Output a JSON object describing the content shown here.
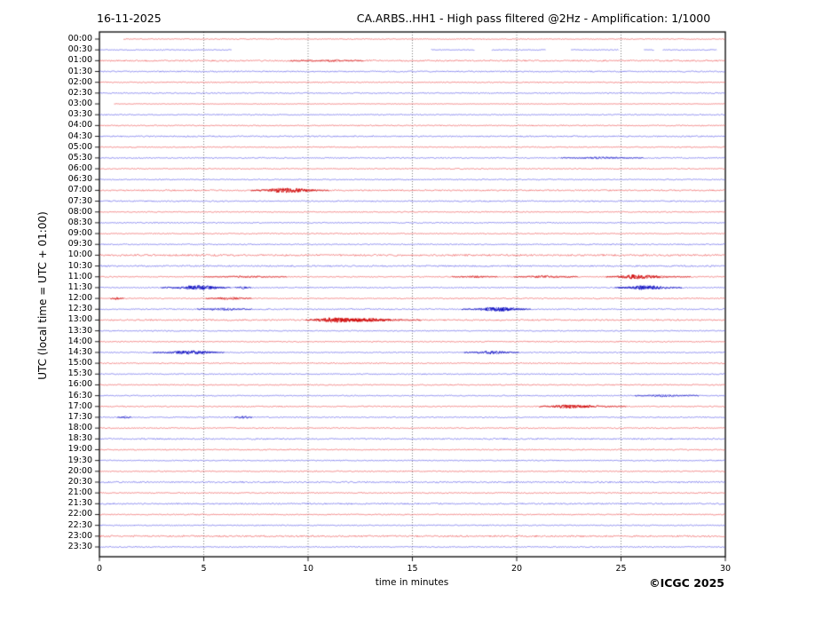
{
  "header": {
    "date_label": "16-11-2025",
    "title": "CA.ARBS..HH1 - High pass filtered @2Hz - Amplification: 1/1000"
  },
  "footer": {
    "copyright": "©ICGC 2025"
  },
  "chart_data": {
    "type": "line",
    "subtype": "helicorder-day-plot",
    "title": "CA.ARBS..HH1 - High pass filtered @2Hz - Amplification: 1/1000",
    "date": "16-11-2025",
    "xlabel": "time in minutes",
    "ylabel": "UTC (local time = UTC + 01:00)",
    "x_range": [
      0,
      30
    ],
    "x_ticks": [
      0,
      5,
      10,
      15,
      20,
      25,
      30
    ],
    "grid": "vertical-dashed-every-5-min",
    "legend_position": "none",
    "colors": {
      "trace_red": "rgb(235,60,60)",
      "trace_blue": "rgb(70,70,230)",
      "event_red": "rgb(205,0,0)",
      "event_blue": "rgb(10,10,190)",
      "grid_gray": "#555555",
      "frame_black": "#000000"
    },
    "row_note": "each row = 30 minutes; segments = [startMin,endMin] of recorded data; events = [centerMin, amplitudePx, widthMin]",
    "rows": [
      {
        "label": "00:00",
        "color": "red",
        "base": 0.5,
        "segments": [
          [
            1.15,
            30
          ]
        ],
        "events": []
      },
      {
        "label": "00:30",
        "color": "blue",
        "base": 0.5,
        "segments": [
          [
            0,
            6.35
          ],
          [
            15.9,
            18.0
          ],
          [
            18.8,
            21.4
          ],
          [
            22.6,
            24.9
          ],
          [
            26.1,
            26.6
          ],
          [
            27.0,
            29.6
          ]
        ],
        "events": []
      },
      {
        "label": "01:00",
        "color": "red",
        "base": 0.8,
        "segments": [
          [
            0,
            30
          ]
        ],
        "events": [
          [
            10.9,
            0.5,
            0.8
          ]
        ]
      },
      {
        "label": "01:30",
        "color": "blue",
        "base": 0.7,
        "segments": [
          [
            0,
            30
          ]
        ],
        "events": []
      },
      {
        "label": "02:00",
        "color": "red",
        "base": 0.6,
        "segments": [
          [
            0,
            30
          ]
        ],
        "events": []
      },
      {
        "label": "02:30",
        "color": "blue",
        "base": 0.6,
        "segments": [
          [
            0,
            30
          ]
        ],
        "events": []
      },
      {
        "label": "03:00",
        "color": "red",
        "base": 0.35,
        "segments": [
          [
            0.7,
            30
          ]
        ],
        "events": []
      },
      {
        "label": "03:30",
        "color": "blue",
        "base": 0.6,
        "segments": [
          [
            0,
            30
          ]
        ],
        "events": []
      },
      {
        "label": "04:00",
        "color": "red",
        "base": 0.6,
        "segments": [
          [
            0,
            30
          ]
        ],
        "events": []
      },
      {
        "label": "04:30",
        "color": "blue",
        "base": 0.75,
        "segments": [
          [
            0,
            30
          ]
        ],
        "events": []
      },
      {
        "label": "05:00",
        "color": "red",
        "base": 0.6,
        "segments": [
          [
            0,
            30
          ]
        ],
        "events": []
      },
      {
        "label": "05:30",
        "color": "blue",
        "base": 0.65,
        "segments": [
          [
            0,
            30
          ]
        ],
        "events": [
          [
            24.1,
            0.6,
            0.9
          ]
        ]
      },
      {
        "label": "06:00",
        "color": "red",
        "base": 0.6,
        "segments": [
          [
            0,
            30
          ]
        ],
        "events": []
      },
      {
        "label": "06:30",
        "color": "blue",
        "base": 0.6,
        "segments": [
          [
            0,
            30
          ]
        ],
        "events": []
      },
      {
        "label": "07:00",
        "color": "red",
        "base": 0.75,
        "segments": [
          [
            0,
            30
          ]
        ],
        "events": [
          [
            8.8,
            2.0,
            0.7
          ],
          [
            9.7,
            0.8,
            0.6
          ]
        ]
      },
      {
        "label": "07:30",
        "color": "blue",
        "base": 0.7,
        "segments": [
          [
            0,
            30
          ]
        ],
        "events": []
      },
      {
        "label": "08:00",
        "color": "red",
        "base": 0.6,
        "segments": [
          [
            0,
            30
          ]
        ],
        "events": []
      },
      {
        "label": "08:30",
        "color": "blue",
        "base": 0.6,
        "segments": [
          [
            0,
            30
          ]
        ],
        "events": []
      },
      {
        "label": "09:00",
        "color": "red",
        "base": 0.6,
        "segments": [
          [
            0,
            30
          ]
        ],
        "events": []
      },
      {
        "label": "09:30",
        "color": "blue",
        "base": 0.65,
        "segments": [
          [
            0,
            30
          ]
        ],
        "events": []
      },
      {
        "label": "10:00",
        "color": "red",
        "base": 1.0,
        "segments": [
          [
            0,
            30
          ]
        ],
        "events": []
      },
      {
        "label": "10:30",
        "color": "blue",
        "base": 0.85,
        "segments": [
          [
            0,
            30
          ]
        ],
        "events": []
      },
      {
        "label": "11:00",
        "color": "red",
        "base": 0.6,
        "segments": [
          [
            0,
            30
          ]
        ],
        "events": [
          [
            7.0,
            0.5,
            0.9
          ],
          [
            18.0,
            0.7,
            0.5
          ],
          [
            21.4,
            0.9,
            0.7
          ],
          [
            25.6,
            1.7,
            0.6
          ],
          [
            26.6,
            0.8,
            0.8
          ]
        ]
      },
      {
        "label": "11:30",
        "color": "blue",
        "base": 0.6,
        "segments": [
          [
            0,
            30
          ]
        ],
        "events": [
          [
            4.5,
            1.7,
            0.7
          ],
          [
            5.2,
            0.9,
            0.5
          ],
          [
            6.9,
            0.9,
            0.18
          ],
          [
            25.8,
            0.8,
            0.5
          ],
          [
            26.4,
            1.5,
            0.7
          ]
        ]
      },
      {
        "label": "12:00",
        "color": "red",
        "base": 0.6,
        "segments": [
          [
            0,
            30
          ]
        ],
        "events": [
          [
            0.85,
            1.0,
            0.15
          ],
          [
            6.2,
            1.1,
            0.5
          ]
        ]
      },
      {
        "label": "12:30",
        "color": "blue",
        "base": 0.7,
        "segments": [
          [
            0,
            30
          ]
        ],
        "events": [
          [
            6.0,
            0.9,
            0.6
          ],
          [
            18.9,
            1.6,
            0.7
          ],
          [
            19.6,
            0.8,
            0.5
          ]
        ]
      },
      {
        "label": "13:00",
        "color": "red",
        "base": 0.8,
        "segments": [
          [
            0,
            30
          ]
        ],
        "events": [
          [
            11.2,
            1.9,
            0.6
          ],
          [
            12.0,
            1.0,
            0.8
          ],
          [
            12.9,
            1.1,
            0.5
          ],
          [
            13.9,
            0.5,
            0.7
          ]
        ]
      },
      {
        "label": "13:30",
        "color": "blue",
        "base": 0.6,
        "segments": [
          [
            0,
            30
          ]
        ],
        "events": []
      },
      {
        "label": "14:00",
        "color": "red",
        "base": 0.6,
        "segments": [
          [
            0,
            30
          ]
        ],
        "events": []
      },
      {
        "label": "14:30",
        "color": "blue",
        "base": 0.6,
        "segments": [
          [
            0,
            30
          ]
        ],
        "events": [
          [
            4.1,
            1.5,
            0.7
          ],
          [
            4.9,
            0.8,
            0.5
          ],
          [
            18.8,
            1.5,
            0.6
          ]
        ]
      },
      {
        "label": "15:00",
        "color": "red",
        "base": 0.6,
        "segments": [
          [
            0,
            30
          ]
        ],
        "events": []
      },
      {
        "label": "15:30",
        "color": "blue",
        "base": 0.6,
        "segments": [
          [
            0,
            30
          ]
        ],
        "events": []
      },
      {
        "label": "16:00",
        "color": "red",
        "base": 0.6,
        "segments": [
          [
            0,
            30
          ]
        ],
        "events": []
      },
      {
        "label": "16:30",
        "color": "blue",
        "base": 0.6,
        "segments": [
          [
            0,
            30
          ]
        ],
        "events": [
          [
            27.2,
            0.8,
            0.7
          ]
        ]
      },
      {
        "label": "17:00",
        "color": "red",
        "base": 0.6,
        "segments": [
          [
            0,
            30
          ]
        ],
        "events": [
          [
            22.4,
            1.4,
            0.6
          ],
          [
            23.5,
            0.7,
            0.8
          ]
        ]
      },
      {
        "label": "17:30",
        "color": "blue",
        "base": 0.6,
        "segments": [
          [
            0,
            30
          ]
        ],
        "events": [
          [
            1.2,
            1.1,
            0.15
          ],
          [
            6.9,
            1.2,
            0.2
          ]
        ]
      },
      {
        "label": "18:00",
        "color": "red",
        "base": 0.6,
        "segments": [
          [
            0,
            30
          ]
        ],
        "events": []
      },
      {
        "label": "18:30",
        "color": "blue",
        "base": 0.8,
        "segments": [
          [
            0,
            30
          ]
        ],
        "events": []
      },
      {
        "label": "19:00",
        "color": "red",
        "base": 0.65,
        "segments": [
          [
            0,
            30
          ]
        ],
        "events": []
      },
      {
        "label": "19:30",
        "color": "blue",
        "base": 0.6,
        "segments": [
          [
            0,
            30
          ]
        ],
        "events": []
      },
      {
        "label": "20:00",
        "color": "red",
        "base": 0.6,
        "segments": [
          [
            0,
            30
          ]
        ],
        "events": []
      },
      {
        "label": "20:30",
        "color": "blue",
        "base": 0.85,
        "segments": [
          [
            0,
            30
          ]
        ],
        "events": []
      },
      {
        "label": "21:00",
        "color": "red",
        "base": 0.6,
        "segments": [
          [
            0,
            30
          ]
        ],
        "events": []
      },
      {
        "label": "21:30",
        "color": "blue",
        "base": 0.8,
        "segments": [
          [
            0,
            30
          ]
        ],
        "events": []
      },
      {
        "label": "22:00",
        "color": "red",
        "base": 0.6,
        "segments": [
          [
            0,
            30
          ]
        ],
        "events": []
      },
      {
        "label": "22:30",
        "color": "blue",
        "base": 0.6,
        "segments": [
          [
            0,
            30
          ]
        ],
        "events": []
      },
      {
        "label": "23:00",
        "color": "red",
        "base": 0.9,
        "segments": [
          [
            0,
            30
          ]
        ],
        "events": []
      },
      {
        "label": "23:30",
        "color": "blue",
        "base": 0.6,
        "segments": [
          [
            0,
            30
          ]
        ],
        "events": []
      }
    ]
  }
}
